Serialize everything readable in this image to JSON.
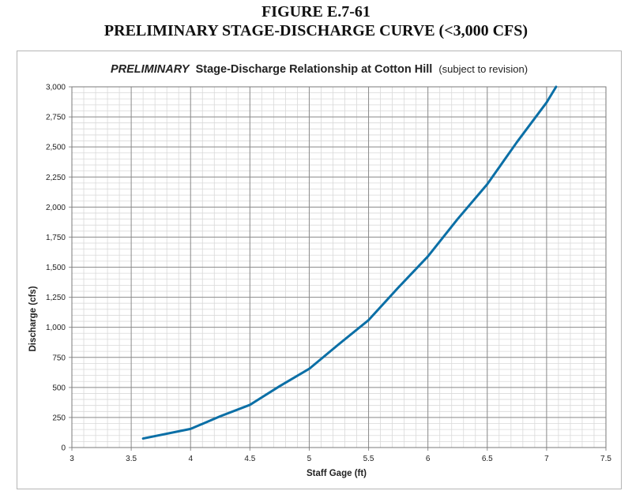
{
  "figure": {
    "label": "FIGURE E.7-61",
    "caption": "PRELIMINARY STAGE-DISCHARGE CURVE (<3,000 CFS)"
  },
  "colors": {
    "curve": "#0B6FA6",
    "major_grid": "#8c8c8c",
    "minor_grid": "#d9d9d9",
    "text": "#222222"
  },
  "chart_data": {
    "type": "line",
    "title_emphasis": "PRELIMINARY",
    "title_main": "Stage-Discharge Relationship at Cotton Hill",
    "title_note": "(subject to revision)",
    "xlabel": "Staff Gage (ft)",
    "ylabel": "Discharge (cfs)",
    "xlim": [
      3,
      7.5
    ],
    "ylim": [
      0,
      3000
    ],
    "x_ticks": [
      "3",
      "3.5",
      "4",
      "4.5",
      "5",
      "5.5",
      "6",
      "6.5",
      "7",
      "7.5"
    ],
    "y_ticks": [
      "0",
      "250",
      "500",
      "750",
      "1,000",
      "1,250",
      "1,500",
      "1,750",
      "2,000",
      "2,250",
      "2,500",
      "2,750",
      "3,000"
    ],
    "grid": true,
    "legend": false,
    "series": [
      {
        "x": [
          3.6,
          4.0,
          4.25,
          4.5,
          4.75,
          5.0,
          5.25,
          5.5,
          5.75,
          6.0,
          6.25,
          6.5,
          6.75,
          7.0,
          7.08
        ],
        "y": [
          75,
          155,
          260,
          355,
          510,
          655,
          860,
          1060,
          1330,
          1590,
          1900,
          2190,
          2540,
          2870,
          3000
        ]
      }
    ]
  }
}
